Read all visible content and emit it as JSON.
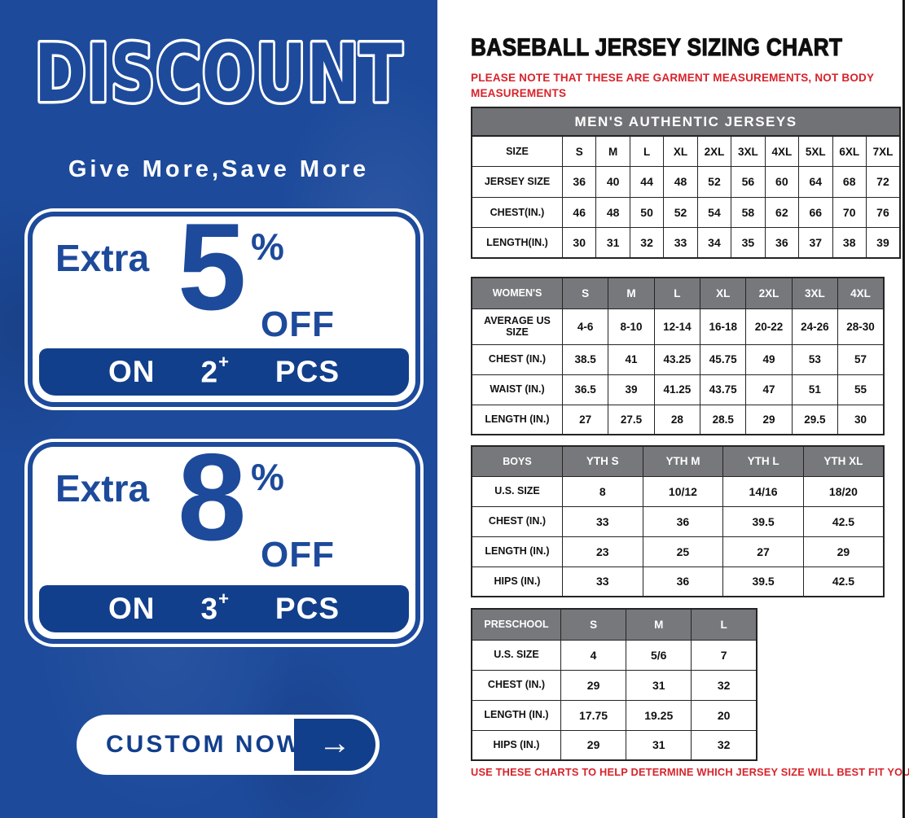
{
  "left_panel": {
    "headline": "DISCOUNT",
    "tagline": "Give More,Save More",
    "offers": [
      {
        "prefix": "Extra",
        "percent": "5",
        "percent_sign": "%",
        "off_label": "OFF",
        "on_label": "ON",
        "qty": "2",
        "plus": "+",
        "pcs_label": "PCS"
      },
      {
        "prefix": "Extra",
        "percent": "8",
        "percent_sign": "%",
        "off_label": "OFF",
        "on_label": "ON",
        "qty": "3",
        "plus": "+",
        "pcs_label": "PCS"
      }
    ],
    "cta": {
      "label": "CUSTOM NOW",
      "arrow": "→"
    }
  },
  "right_panel": {
    "title": "BASEBALL JERSEY SIZING CHART",
    "note": "PLEASE NOTE THAT THESE ARE GARMENT MEASUREMENTS, NOT BODY MEASUREMENTS",
    "footer_note": "USE THESE CHARTS TO HELP DETERMINE WHICH JERSEY SIZE WILL BEST FIT YOU.",
    "tables": [
      {
        "id": "mens",
        "banner": "MEN'S AUTHENTIC JERSEYS",
        "header": [
          "SIZE",
          "S",
          "M",
          "L",
          "XL",
          "2XL",
          "3XL",
          "4XL",
          "5XL",
          "6XL",
          "7XL"
        ],
        "rows": [
          [
            "JERSEY SIZE",
            "36",
            "40",
            "44",
            "48",
            "52",
            "56",
            "60",
            "64",
            "68",
            "72"
          ],
          [
            "CHEST(IN.)",
            "46",
            "48",
            "50",
            "52",
            "54",
            "58",
            "62",
            "66",
            "70",
            "76"
          ],
          [
            "LENGTH(IN.)",
            "30",
            "31",
            "32",
            "33",
            "34",
            "35",
            "36",
            "37",
            "38",
            "39"
          ]
        ]
      },
      {
        "id": "womens",
        "header": [
          "WOMEN'S",
          "S",
          "M",
          "L",
          "XL",
          "2XL",
          "3XL",
          "4XL"
        ],
        "rows": [
          [
            "AVERAGE US SIZE",
            "4-6",
            "8-10",
            "12-14",
            "16-18",
            "20-22",
            "24-26",
            "28-30"
          ],
          [
            "CHEST (IN.)",
            "38.5",
            "41",
            "43.25",
            "45.75",
            "49",
            "53",
            "57"
          ],
          [
            "WAIST (IN.)",
            "36.5",
            "39",
            "41.25",
            "43.75",
            "47",
            "51",
            "55"
          ],
          [
            "LENGTH (IN.)",
            "27",
            "27.5",
            "28",
            "28.5",
            "29",
            "29.5",
            "30"
          ]
        ]
      },
      {
        "id": "boys",
        "header": [
          "BOYS",
          "YTH S",
          "YTH M",
          "YTH L",
          "YTH XL"
        ],
        "rows": [
          [
            "U.S. SIZE",
            "8",
            "10/12",
            "14/16",
            "18/20"
          ],
          [
            "CHEST (IN.)",
            "33",
            "36",
            "39.5",
            "42.5"
          ],
          [
            "LENGTH (IN.)",
            "23",
            "25",
            "27",
            "29"
          ],
          [
            "HIPS (IN.)",
            "33",
            "36",
            "39.5",
            "42.5"
          ]
        ]
      },
      {
        "id": "preschool",
        "header": [
          "PRESCHOOL",
          "S",
          "M",
          "L"
        ],
        "rows": [
          [
            "U.S. SIZE",
            "4",
            "5/6",
            "7"
          ],
          [
            "CHEST (IN.)",
            "29",
            "31",
            "32"
          ],
          [
            "LENGTH (IN.)",
            "17.75",
            "19.25",
            "20"
          ],
          [
            "HIPS (IN.)",
            "29",
            "31",
            "32"
          ]
        ]
      }
    ]
  },
  "colors": {
    "panel_blue": "#1d4a9b",
    "deep_blue": "#123f8c",
    "note_red": "#d8232b",
    "banner_gray": "#717275",
    "header_gray": "#77787b",
    "table_border": "#242424"
  }
}
